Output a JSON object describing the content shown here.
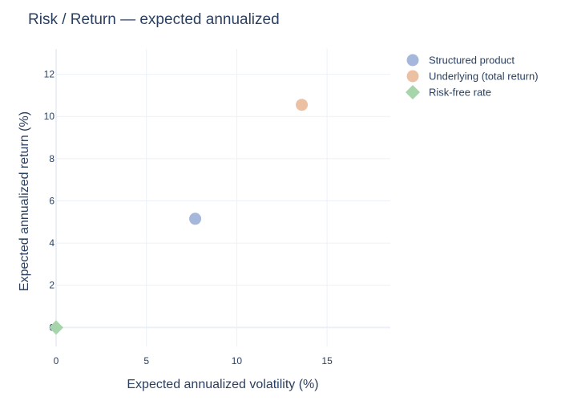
{
  "chart_data": {
    "type": "scatter",
    "title": "Risk / Return — expected annualized",
    "xlabel": "Expected annualized volatility (%)",
    "ylabel": "Expected annualized return (%)",
    "xlim": [
      0,
      18.5
    ],
    "ylim": [
      -0.9,
      13.2
    ],
    "xticks": [
      0,
      5,
      10,
      15
    ],
    "yticks": [
      0,
      2,
      4,
      6,
      8,
      10,
      12
    ],
    "grid": true,
    "legend_position": "top-right",
    "series": [
      {
        "name": "Structured product",
        "marker": "circle",
        "color": "#a5b7db",
        "x": [
          7.7
        ],
        "y": [
          5.15
        ]
      },
      {
        "name": "Underlying (total return)",
        "marker": "circle",
        "color": "#ecc0a3",
        "x": [
          13.6
        ],
        "y": [
          10.55
        ]
      },
      {
        "name": "Risk-free rate",
        "marker": "diamond",
        "color": "#a6d4ab",
        "x": [
          0
        ],
        "y": [
          0
        ]
      }
    ]
  }
}
